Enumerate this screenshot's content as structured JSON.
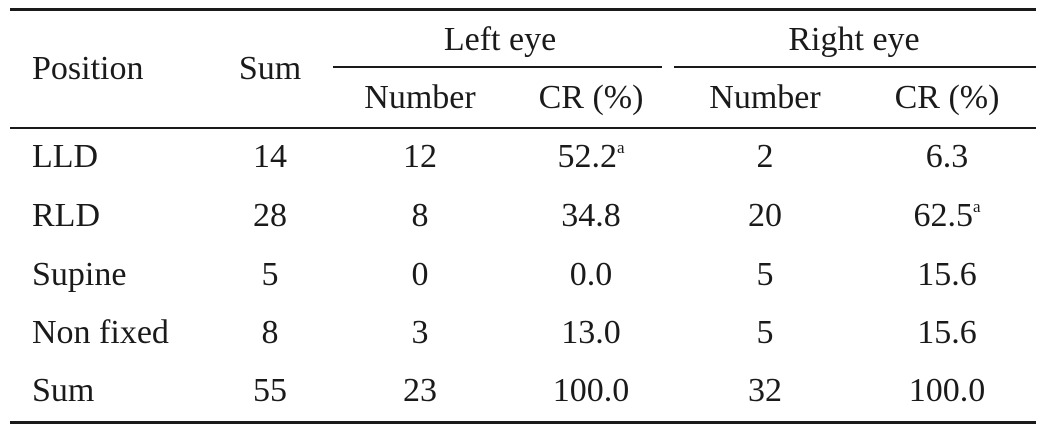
{
  "table": {
    "headers": {
      "position": "Position",
      "sum": "Sum",
      "left_eye": "Left eye",
      "right_eye": "Right eye",
      "left_number": "Number",
      "left_cr": "CR (%)",
      "right_number": "Number",
      "right_cr": "CR (%)"
    },
    "rows": [
      {
        "position": "LLD",
        "sum": "14",
        "left_number": "12",
        "left_cr": "52.2",
        "left_cr_note": "a",
        "right_number": "2",
        "right_cr": "6.3",
        "right_cr_note": ""
      },
      {
        "position": "RLD",
        "sum": "28",
        "left_number": "8",
        "left_cr": "34.8",
        "left_cr_note": "",
        "right_number": "20",
        "right_cr": "62.5",
        "right_cr_note": "a"
      },
      {
        "position": "Supine",
        "sum": "5",
        "left_number": "0",
        "left_cr": "0.0",
        "left_cr_note": "",
        "right_number": "5",
        "right_cr": "15.6",
        "right_cr_note": ""
      },
      {
        "position": "Non fixed",
        "sum": "8",
        "left_number": "3",
        "left_cr": "13.0",
        "left_cr_note": "",
        "right_number": "5",
        "right_cr": "15.6",
        "right_cr_note": ""
      },
      {
        "position": "Sum",
        "sum": "55",
        "left_number": "23",
        "left_cr": "100.0",
        "left_cr_note": "",
        "right_number": "32",
        "right_cr": "100.0",
        "right_cr_note": ""
      }
    ]
  }
}
